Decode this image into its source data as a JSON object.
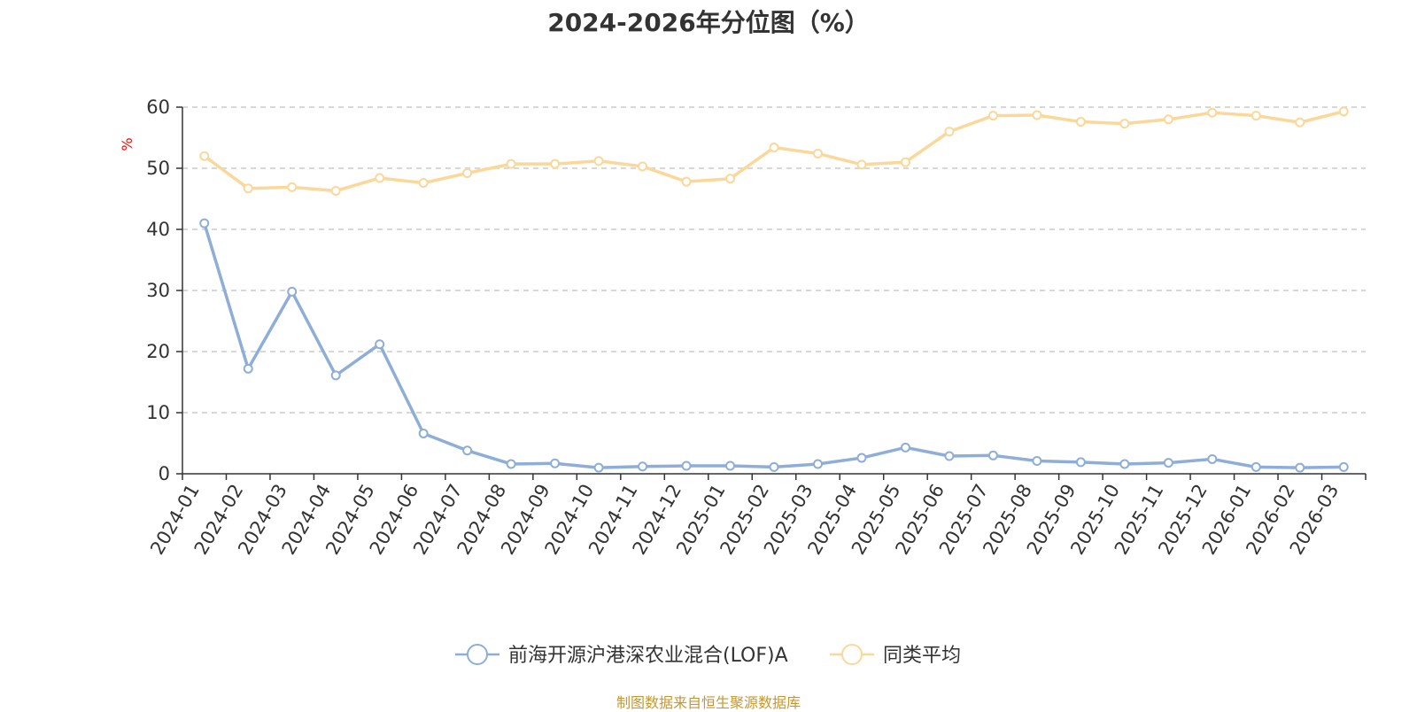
{
  "chart_data": {
    "type": "line",
    "title": "2024-2026年分位图（%）",
    "ylabel": "%",
    "xlabel": "",
    "ylim": [
      0,
      60
    ],
    "yticks": [
      0,
      10,
      20,
      30,
      40,
      50,
      60
    ],
    "grid": true,
    "legend_position": "bottom-center",
    "categories": [
      "2024-01",
      "2024-02",
      "2024-03",
      "2024-04",
      "2024-05",
      "2024-06",
      "2024-07",
      "2024-08",
      "2024-09",
      "2024-10",
      "2024-11",
      "2024-12",
      "2025-01",
      "2025-02",
      "2025-03",
      "2025-04",
      "2025-05",
      "2025-06",
      "2025-07",
      "2025-08",
      "2025-09",
      "2025-10",
      "2025-11",
      "2025-12",
      "2026-01",
      "2026-02",
      "2026-03"
    ],
    "series": [
      {
        "name": "前海开源沪港深农业混合(LOF)A",
        "color": "#8eaed8",
        "values": [
          41.0,
          17.2,
          29.8,
          16.1,
          21.2,
          6.6,
          3.8,
          1.6,
          1.7,
          1.0,
          1.2,
          1.3,
          1.3,
          1.1,
          1.6,
          2.6,
          4.3,
          2.9,
          3.0,
          2.1,
          1.9,
          1.6,
          1.8,
          2.4,
          1.1,
          1.0,
          1.1
        ]
      },
      {
        "name": "同类平均",
        "color": "#fbd89a",
        "values": [
          52.0,
          46.7,
          46.9,
          46.3,
          48.4,
          47.6,
          49.2,
          50.7,
          50.7,
          51.2,
          50.3,
          47.8,
          48.3,
          53.4,
          52.4,
          50.6,
          51.0,
          56.0,
          58.6,
          58.7,
          57.6,
          57.3,
          58.0,
          59.1,
          58.6,
          57.5,
          59.3
        ]
      }
    ]
  },
  "footer": "制图数据来自恒生聚源数据库"
}
